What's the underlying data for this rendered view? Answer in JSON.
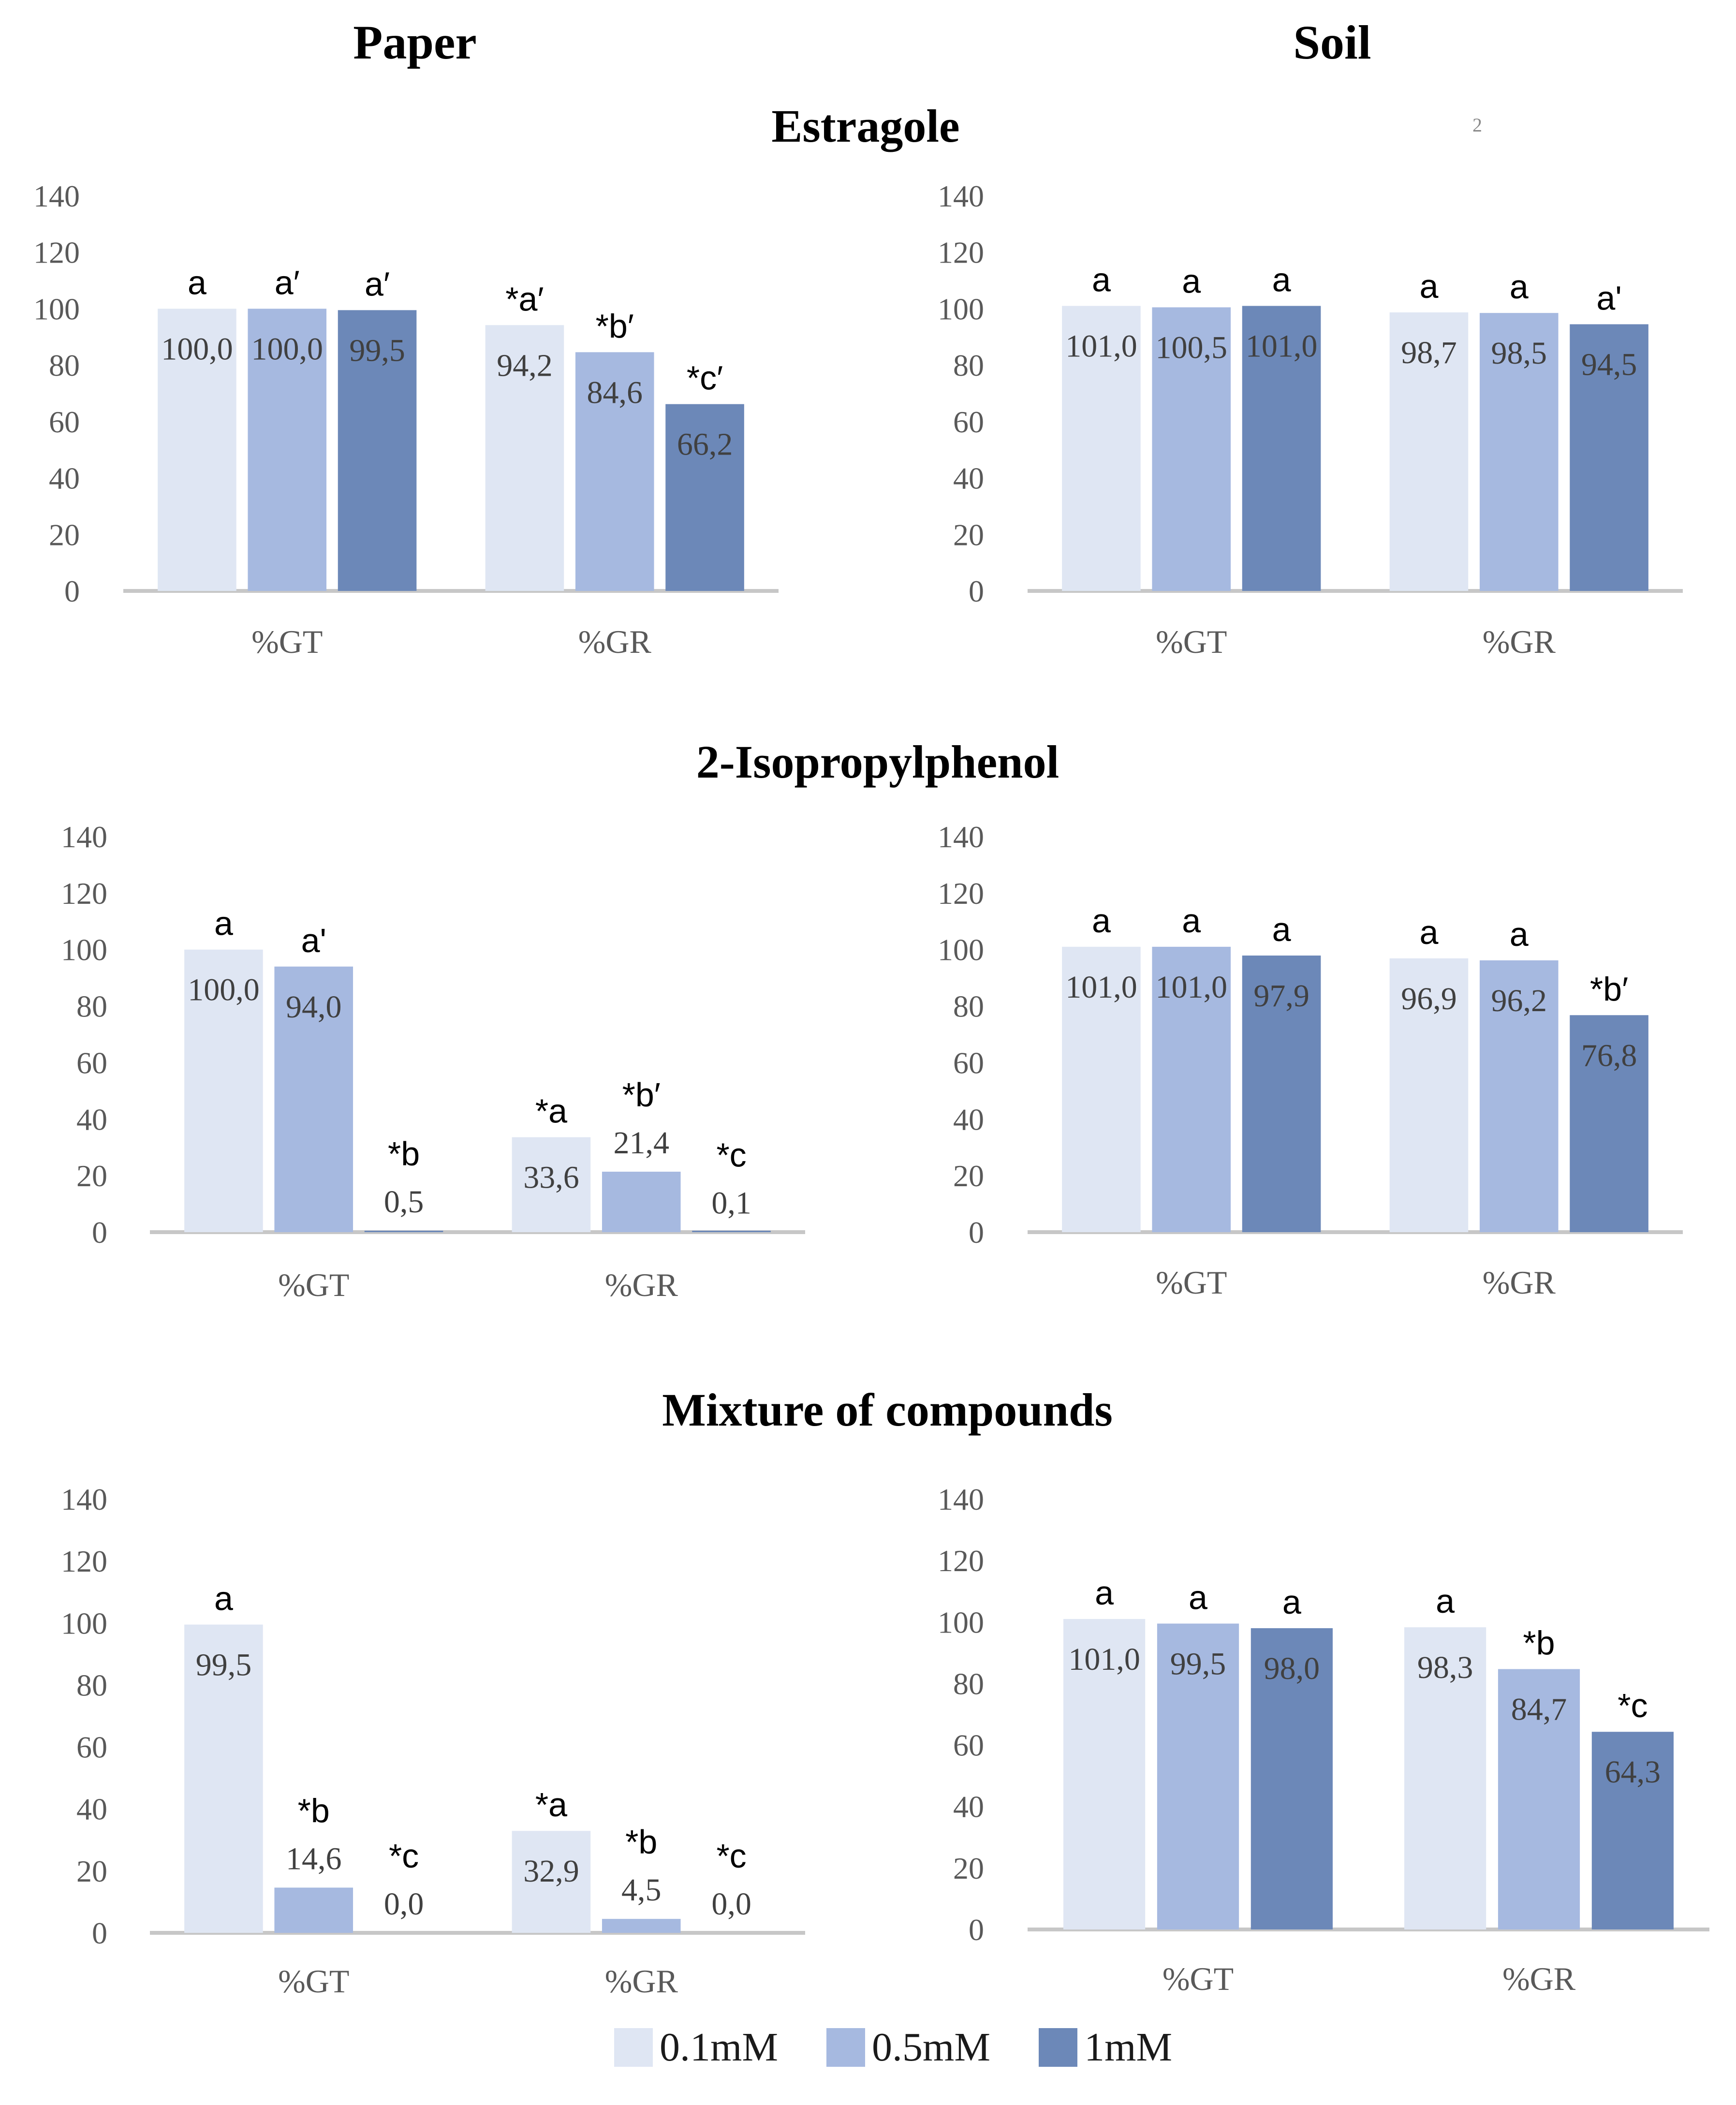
{
  "columns": [
    "Paper",
    "Soil"
  ],
  "stray_mark": "2",
  "colors": {
    "s1": "#dfe6f3",
    "s2": "#a6b9e0",
    "s3": "#6c88b8",
    "axis": "#c7c7c7"
  },
  "legend": [
    {
      "label": "0.1mM",
      "color": "#dfe6f3"
    },
    {
      "label": "0.5mM",
      "color": "#a6b9e0"
    },
    {
      "label": "1mM",
      "color": "#6c88b8"
    }
  ],
  "chart_data": [
    {
      "type": "bar",
      "group": "Estragole",
      "medium": "Paper",
      "categories": [
        "%GT",
        "%GR"
      ],
      "ylim": [
        0,
        140
      ],
      "yticks": [
        "0",
        "20",
        "40",
        "60",
        "80",
        "100",
        "120",
        "140"
      ],
      "series": [
        {
          "name": "0.1mM",
          "values": [
            100.0,
            94.2
          ],
          "labels": [
            "100,0",
            "94,2"
          ],
          "letters": [
            "a",
            "*a′"
          ]
        },
        {
          "name": "0.5mM",
          "values": [
            100.0,
            84.6
          ],
          "labels": [
            "100,0",
            "84,6"
          ],
          "letters": [
            "a′",
            "*b′"
          ]
        },
        {
          "name": "1mM",
          "values": [
            99.5,
            66.2
          ],
          "labels": [
            "99,5",
            "66,2"
          ],
          "letters": [
            "a′",
            "*c′"
          ]
        }
      ]
    },
    {
      "type": "bar",
      "group": "Estragole",
      "medium": "Soil",
      "categories": [
        "%GT",
        "%GR"
      ],
      "ylim": [
        0,
        140
      ],
      "yticks": [
        "0",
        "20",
        "40",
        "60",
        "80",
        "100",
        "120",
        "140"
      ],
      "series": [
        {
          "name": "0.1mM",
          "values": [
            101.0,
            98.7
          ],
          "labels": [
            "101,0",
            "98,7"
          ],
          "letters": [
            "a",
            "a"
          ]
        },
        {
          "name": "0.5mM",
          "values": [
            100.5,
            98.5
          ],
          "labels": [
            "100,5",
            "98,5"
          ],
          "letters": [
            "a",
            "a"
          ]
        },
        {
          "name": "1mM",
          "values": [
            101.0,
            94.5
          ],
          "labels": [
            "101,0",
            "94,5"
          ],
          "letters": [
            "a",
            "a'"
          ]
        }
      ]
    },
    {
      "type": "bar",
      "group": "2-Isopropylphenol",
      "medium": "Paper",
      "categories": [
        "%GT",
        "%GR"
      ],
      "ylim": [
        0,
        140
      ],
      "yticks": [
        "0",
        "20",
        "40",
        "60",
        "80",
        "100",
        "120",
        "140"
      ],
      "series": [
        {
          "name": "0.1mM",
          "values": [
            100.0,
            33.6
          ],
          "labels": [
            "100,0",
            "33,6"
          ],
          "letters": [
            "a",
            "*a"
          ]
        },
        {
          "name": "0.5mM",
          "values": [
            94.0,
            21.4
          ],
          "labels": [
            "94,0",
            "21,4"
          ],
          "letters": [
            "a'",
            "*b′"
          ]
        },
        {
          "name": "1mM",
          "values": [
            0.5,
            0.1
          ],
          "labels": [
            "0,5",
            "0,1"
          ],
          "letters": [
            "*b",
            "*c"
          ]
        }
      ]
    },
    {
      "type": "bar",
      "group": "2-Isopropylphenol",
      "medium": "Soil",
      "categories": [
        "%GT",
        "%GR"
      ],
      "ylim": [
        0,
        140
      ],
      "yticks": [
        "0",
        "20",
        "40",
        "60",
        "80",
        "100",
        "120",
        "140"
      ],
      "series": [
        {
          "name": "0.1mM",
          "values": [
            101.0,
            96.9
          ],
          "labels": [
            "101,0",
            "96,9"
          ],
          "letters": [
            "a",
            "a"
          ]
        },
        {
          "name": "0.5mM",
          "values": [
            101.0,
            96.2
          ],
          "labels": [
            "101,0",
            "96,2"
          ],
          "letters": [
            "a",
            "a"
          ]
        },
        {
          "name": "1mM",
          "values": [
            97.9,
            76.8
          ],
          "labels": [
            "97,9",
            "76,8"
          ],
          "letters": [
            "a",
            "*b′"
          ]
        }
      ]
    },
    {
      "type": "bar",
      "group": "Mixture of compounds",
      "medium": "Paper",
      "categories": [
        "%GT",
        "%GR"
      ],
      "ylim": [
        0,
        140
      ],
      "yticks": [
        "0",
        "20",
        "40",
        "60",
        "80",
        "100",
        "120",
        "140"
      ],
      "series": [
        {
          "name": "0.1mM",
          "values": [
            99.5,
            32.9
          ],
          "labels": [
            "99,5",
            "32,9"
          ],
          "letters": [
            "a",
            "*a"
          ]
        },
        {
          "name": "0.5mM",
          "values": [
            14.6,
            4.5
          ],
          "labels": [
            "14,6",
            "4,5"
          ],
          "letters": [
            "*b",
            "*b"
          ]
        },
        {
          "name": "1mM",
          "values": [
            0.0,
            0.0
          ],
          "labels": [
            "0,0",
            "0,0"
          ],
          "letters": [
            "*c",
            "*c"
          ]
        }
      ]
    },
    {
      "type": "bar",
      "group": "Mixture of compounds",
      "medium": "Soil",
      "categories": [
        "%GT",
        "%GR"
      ],
      "ylim": [
        0,
        140
      ],
      "yticks": [
        "0",
        "20",
        "40",
        "60",
        "80",
        "100",
        "120",
        "140"
      ],
      "series": [
        {
          "name": "0.1mM",
          "values": [
            101.0,
            98.3
          ],
          "labels": [
            "101,0",
            "98,3"
          ],
          "letters": [
            "a",
            "a"
          ]
        },
        {
          "name": "0.5mM",
          "values": [
            99.5,
            84.7
          ],
          "labels": [
            "99,5",
            "84,7"
          ],
          "letters": [
            "a",
            "*b"
          ]
        },
        {
          "name": "1mM",
          "values": [
            98.0,
            64.3
          ],
          "labels": [
            "98,0",
            "64,3"
          ],
          "letters": [
            "a",
            "*c"
          ]
        }
      ]
    }
  ]
}
